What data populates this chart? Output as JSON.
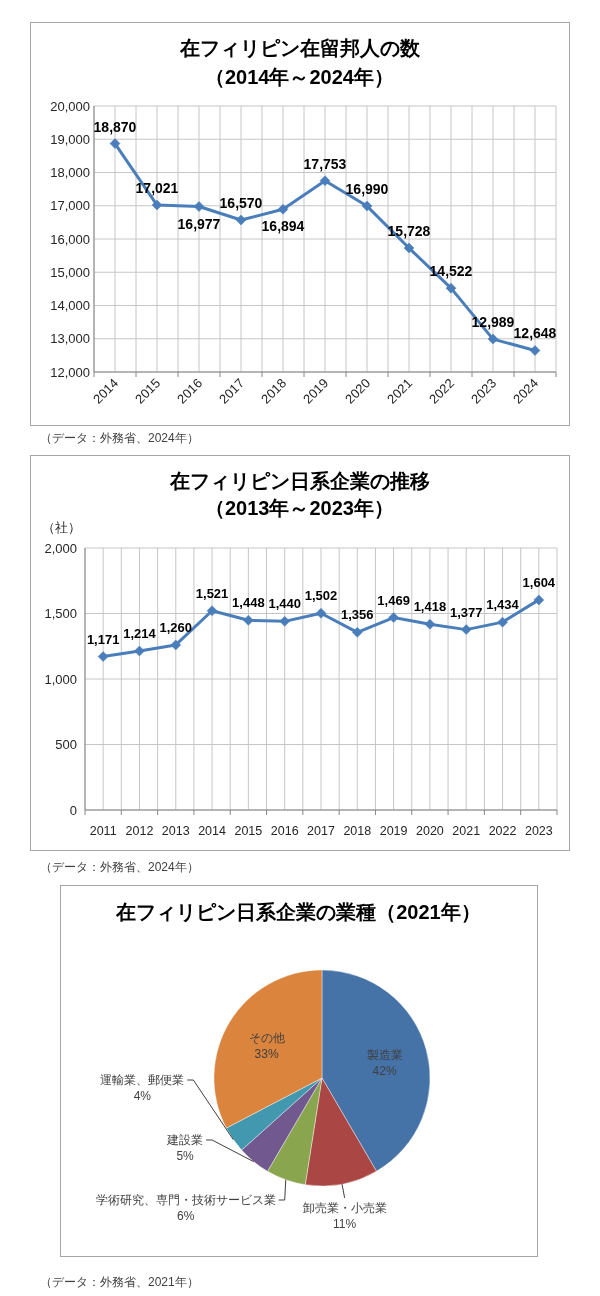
{
  "chart_data": [
    {
      "type": "line",
      "title": "在フィリピン在留邦人の数",
      "subtitle": "（2014年～2024年）",
      "categories": [
        "2014",
        "2015",
        "2016",
        "2017",
        "2018",
        "2019",
        "2020",
        "2021",
        "2022",
        "2023",
        "2024"
      ],
      "values": [
        18870,
        17021,
        16977,
        16570,
        16894,
        17753,
        16990,
        15728,
        14522,
        12989,
        12648
      ],
      "value_labels": [
        "18,870",
        "17,021",
        "16,977",
        "16,570",
        "16,894",
        "17,753",
        "16,990",
        "15,728",
        "14,522",
        "12,989",
        "12,648"
      ],
      "color": "#4a7ebb",
      "marker": "diamond",
      "grid": true,
      "ylim": [
        12000,
        20000
      ],
      "yticks": [
        {
          "value": 12000,
          "label": "12,000"
        },
        {
          "value": 13000,
          "label": "13,000"
        },
        {
          "value": 14000,
          "label": "14,000"
        },
        {
          "value": 15000,
          "label": "15,000"
        },
        {
          "value": 16000,
          "label": "16,000"
        },
        {
          "value": 17000,
          "label": "17,000"
        },
        {
          "value": 18000,
          "label": "18,000"
        },
        {
          "value": 19000,
          "label": "19,000"
        },
        {
          "value": 20000,
          "label": "20,000"
        }
      ],
      "annotations": [
        "（データ：外務省、2024年）"
      ]
    },
    {
      "type": "line",
      "title": "在フィリピン日系企業の推移",
      "subtitle": "（2013年～2023年）",
      "ylabel": "（社）",
      "categories": [
        "2011",
        "2012",
        "2013",
        "2014",
        "2015",
        "2016",
        "2017",
        "2018",
        "2019",
        "2020",
        "2021",
        "2022",
        "2023"
      ],
      "values": [
        1171,
        1214,
        1260,
        1521,
        1448,
        1440,
        1502,
        1356,
        1469,
        1418,
        1377,
        1434,
        1604
      ],
      "value_labels": [
        "1,171",
        "1,214",
        "1,260",
        "1,521",
        "1,448",
        "1,440",
        "1,502",
        "1,356",
        "1,469",
        "1,418",
        "1,377",
        "1,434",
        "1,604"
      ],
      "color": "#4a7ebb",
      "marker": "diamond",
      "grid": true,
      "ylim": [
        0,
        2000
      ],
      "yticks": [
        0,
        500,
        {
          "value": 1000,
          "label": "1,000"
        },
        {
          "value": 1500,
          "label": "1,500"
        },
        {
          "value": 2000,
          "label": "2,000"
        }
      ],
      "annotations": [
        "（データ：外務省、2024年）"
      ]
    },
    {
      "type": "pie",
      "title": "在フィリピン日系企業の業種（2021年）",
      "categories": [
        "製造業",
        "卸売業・小売業",
        "学術研究、専門・技術サービス業",
        "建設業",
        "運輸業、郵便業",
        "その他"
      ],
      "values": [
        42,
        11,
        6,
        5,
        4,
        33
      ],
      "value_labels": [
        "42%",
        "11%",
        "6%",
        "5%",
        "4%",
        "33%"
      ],
      "colors": [
        "#4572a7",
        "#aa4643",
        "#89a54e",
        "#71588f",
        "#4198af",
        "#db843d"
      ],
      "annotations": [
        "（データ：外務省、2021年）"
      ]
    }
  ]
}
